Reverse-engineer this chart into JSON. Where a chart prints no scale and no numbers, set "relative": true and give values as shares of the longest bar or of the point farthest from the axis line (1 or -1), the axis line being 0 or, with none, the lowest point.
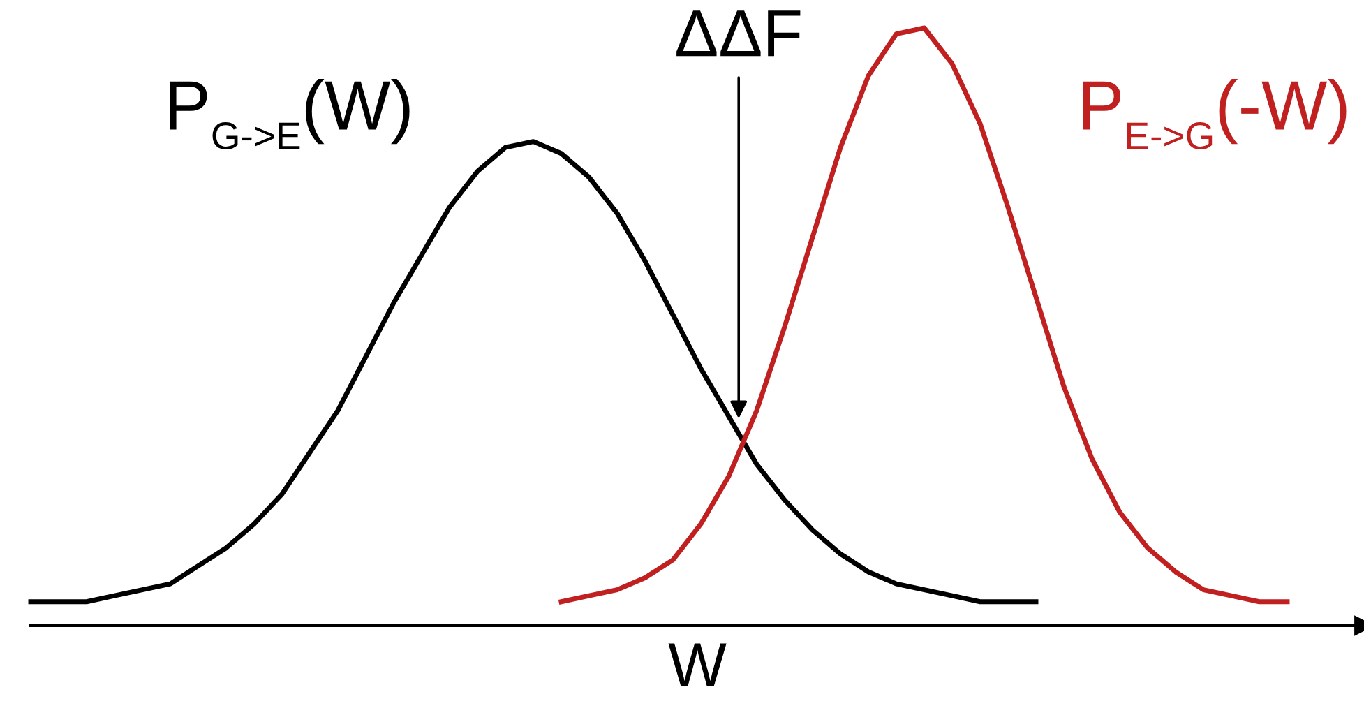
{
  "chart_data": {
    "type": "line",
    "relative": true,
    "xlabel": "W",
    "annotations": [
      "ΔΔF"
    ],
    "marker": "none",
    "line_style": "solid",
    "grid": false,
    "legend": false,
    "tick_labels": false,
    "categories": [
      null,
      null,
      null,
      null,
      null,
      null,
      null,
      null,
      null,
      null,
      null,
      null,
      null,
      null,
      null,
      null,
      null,
      null,
      null,
      null,
      null,
      null,
      null,
      null,
      null,
      null,
      null,
      null,
      null,
      null,
      null,
      null,
      null,
      null,
      null,
      null,
      null,
      null,
      null,
      null,
      null,
      null,
      null,
      null,
      null,
      null
    ],
    "series": [
      {
        "name": "P$_{G->E}$(W)",
        "color": "#000000",
        "values": [
          0.04,
          0.04,
          0.04,
          0.05,
          0.06,
          0.07,
          0.1,
          0.13,
          0.17,
          0.22,
          0.29,
          0.36,
          0.45,
          0.54,
          0.62,
          0.7,
          0.76,
          0.8,
          0.81,
          0.79,
          0.75,
          0.69,
          0.61,
          0.52,
          0.43,
          0.35,
          0.27,
          0.21,
          0.16,
          0.12,
          0.09,
          0.07,
          0.06,
          0.05,
          0.04,
          0.04,
          0.04,
          null,
          null,
          null,
          null,
          null,
          null,
          null,
          null,
          null
        ]
      },
      {
        "name": "P$_{E->G}$(-W)",
        "color": "#c02020",
        "values": [
          null,
          null,
          null,
          null,
          null,
          null,
          null,
          null,
          null,
          null,
          null,
          null,
          null,
          null,
          null,
          null,
          null,
          null,
          null,
          0.04,
          0.05,
          0.06,
          0.08,
          0.11,
          0.17,
          0.25,
          0.36,
          0.5,
          0.65,
          0.8,
          0.92,
          0.99,
          1.0,
          0.94,
          0.84,
          0.7,
          0.55,
          0.4,
          0.28,
          0.19,
          0.13,
          0.09,
          0.06,
          0.05,
          0.04,
          0.04
        ]
      }
    ]
  }
}
